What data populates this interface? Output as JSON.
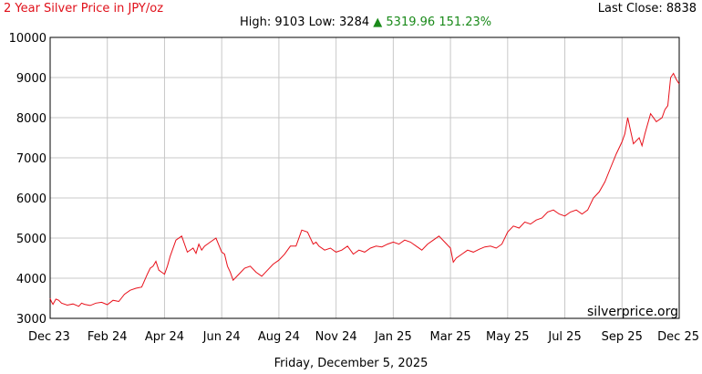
{
  "header": {
    "title": "2 Year Silver Price in JPY/oz",
    "last_close_label": "Last Close: ",
    "last_close_value": "8838",
    "high_label": "High: ",
    "high_value": "9103",
    "low_label": "Low: ",
    "low_value": "3284",
    "change_arrow": "▲",
    "change_amount": "5319.96",
    "change_pct": "151.23%"
  },
  "footer": {
    "date": "Friday, December 5, 2025"
  },
  "watermark": "silverprice.org",
  "colors": {
    "line": "#e8101a",
    "title": "#e0101a",
    "grid": "#c8c8c8",
    "change": "#1a8a1a"
  },
  "chart_data": {
    "type": "line",
    "title": "2 Year Silver Price in JPY/oz",
    "xlabel": "",
    "ylabel": "",
    "ylim": [
      3000,
      10000
    ],
    "y_ticks": [
      3000,
      4000,
      5000,
      6000,
      7000,
      8000,
      9000,
      10000
    ],
    "x_ticks": [
      "Dec 23",
      "Feb 24",
      "Apr 24",
      "Jun 24",
      "Aug 24",
      "Nov 24",
      "Jan 25",
      "Mar 25",
      "May 25",
      "Jul 25",
      "Sep 25",
      "Dec 25"
    ],
    "grid": true,
    "series": [
      {
        "name": "",
        "x": [
          0,
          0.02,
          0.05,
          0.1,
          0.15,
          0.2,
          0.3,
          0.4,
          0.5,
          0.55,
          0.6,
          0.7,
          0.8,
          0.9,
          1.0,
          1.1,
          1.2,
          1.3,
          1.4,
          1.5,
          1.6,
          1.7,
          1.75,
          1.8,
          1.85,
          1.9,
          1.95,
          2.0,
          2.05,
          2.1,
          2.2,
          2.3,
          2.4,
          2.5,
          2.55,
          2.6,
          2.65,
          2.7,
          2.8,
          2.9,
          3.0,
          3.05,
          3.1,
          3.15,
          3.2,
          3.3,
          3.4,
          3.5,
          3.6,
          3.7,
          3.8,
          3.9,
          4.0,
          4.1,
          4.2,
          4.3,
          4.4,
          4.5,
          4.6,
          4.65,
          4.7,
          4.8,
          4.9,
          5.0,
          5.1,
          5.2,
          5.3,
          5.4,
          5.5,
          5.6,
          5.7,
          5.8,
          5.9,
          6.0,
          6.1,
          6.2,
          6.3,
          6.4,
          6.5,
          6.6,
          6.7,
          6.8,
          6.9,
          7.0,
          7.05,
          7.1,
          7.2,
          7.3,
          7.4,
          7.5,
          7.6,
          7.7,
          7.8,
          7.9,
          8.0,
          8.1,
          8.2,
          8.3,
          8.4,
          8.5,
          8.6,
          8.7,
          8.8,
          8.9,
          9.0,
          9.1,
          9.2,
          9.3,
          9.4,
          9.5,
          9.6,
          9.7,
          9.8,
          9.9,
          10.0,
          10.05,
          10.1,
          10.2,
          10.3,
          10.35,
          10.4,
          10.5,
          10.6,
          10.7,
          10.75,
          10.8,
          10.85,
          10.9,
          10.95,
          11.0
        ],
        "y": [
          3500,
          3420,
          3350,
          3480,
          3450,
          3380,
          3330,
          3360,
          3300,
          3380,
          3350,
          3320,
          3380,
          3400,
          3340,
          3450,
          3420,
          3600,
          3700,
          3750,
          3780,
          4100,
          4250,
          4300,
          4420,
          4200,
          4150,
          4100,
          4300,
          4550,
          4950,
          5050,
          4650,
          4750,
          4620,
          4850,
          4700,
          4800,
          4900,
          5000,
          4650,
          4600,
          4300,
          4150,
          3950,
          4100,
          4250,
          4300,
          4150,
          4050,
          4200,
          4350,
          4450,
          4600,
          4800,
          4800,
          5200,
          5150,
          4850,
          4900,
          4800,
          4700,
          4750,
          4650,
          4700,
          4800,
          4600,
          4700,
          4650,
          4750,
          4800,
          4780,
          4850,
          4900,
          4850,
          4950,
          4900,
          4800,
          4700,
          4850,
          4950,
          5050,
          4900,
          4750,
          4400,
          4500,
          4600,
          4700,
          4650,
          4720,
          4780,
          4800,
          4750,
          4850,
          5150,
          5300,
          5250,
          5400,
          5350,
          5450,
          5500,
          5650,
          5700,
          5600,
          5550,
          5650,
          5700,
          5600,
          5700,
          6000,
          6150,
          6400,
          6750,
          7100,
          7400,
          7600,
          8000,
          7350,
          7500,
          7300,
          7600,
          8100,
          7900,
          8000,
          8200,
          8300,
          9000,
          9103,
          8950,
          8838
        ]
      }
    ]
  }
}
